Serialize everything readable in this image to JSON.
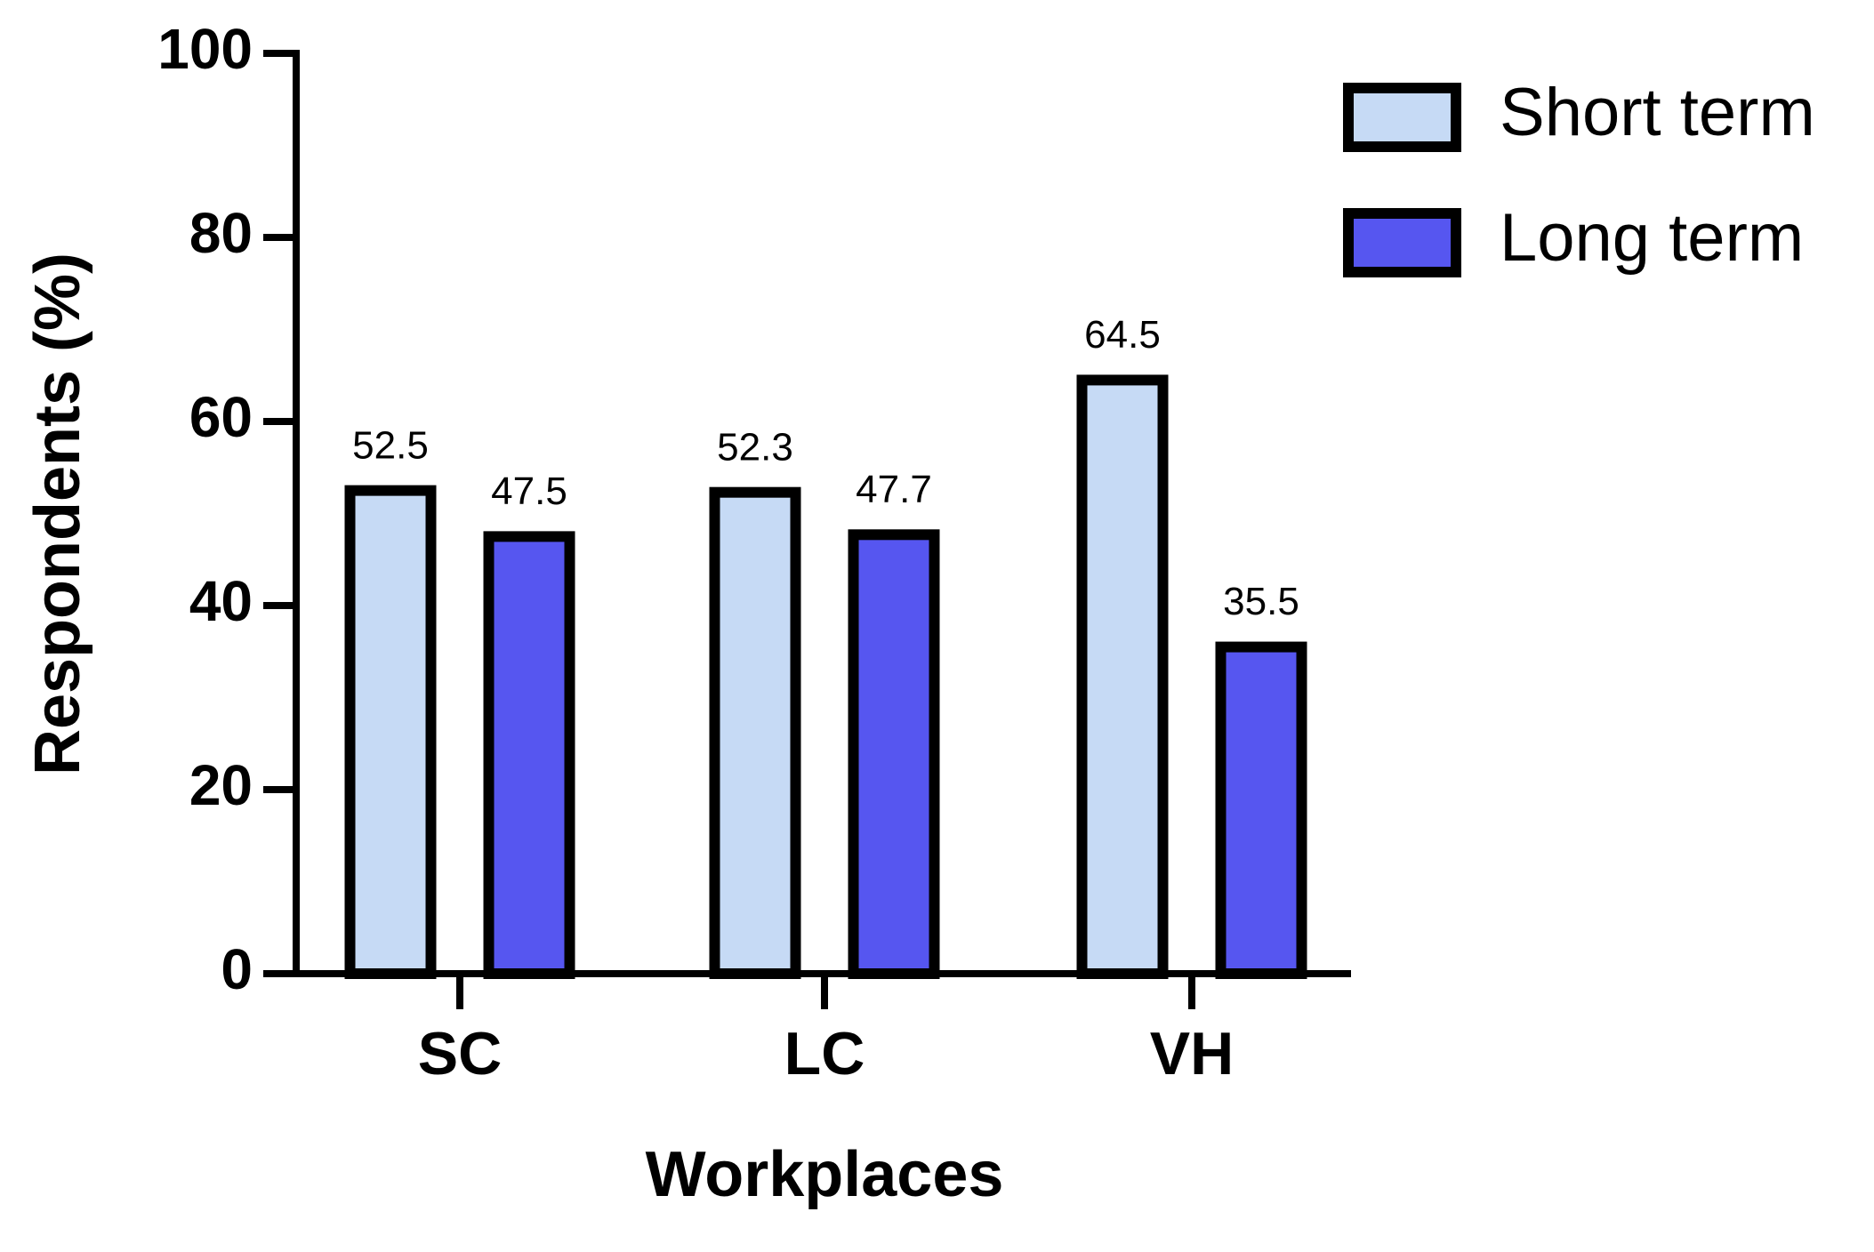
{
  "chart_data": {
    "type": "bar",
    "x_label": "Workplaces",
    "y_label": "Respondents (%)",
    "categories": [
      "SC",
      "LC",
      "VH"
    ],
    "series": [
      {
        "name": "Short term",
        "color": "#c6daf5",
        "values": [
          52.5,
          52.3,
          64.5
        ]
      },
      {
        "name": "Long term",
        "color": "#5656f0",
        "values": [
          47.5,
          47.7,
          35.5
        ]
      }
    ],
    "ylim": [
      0,
      100
    ],
    "yticks": [
      0,
      20,
      40,
      60,
      80,
      100
    ]
  }
}
